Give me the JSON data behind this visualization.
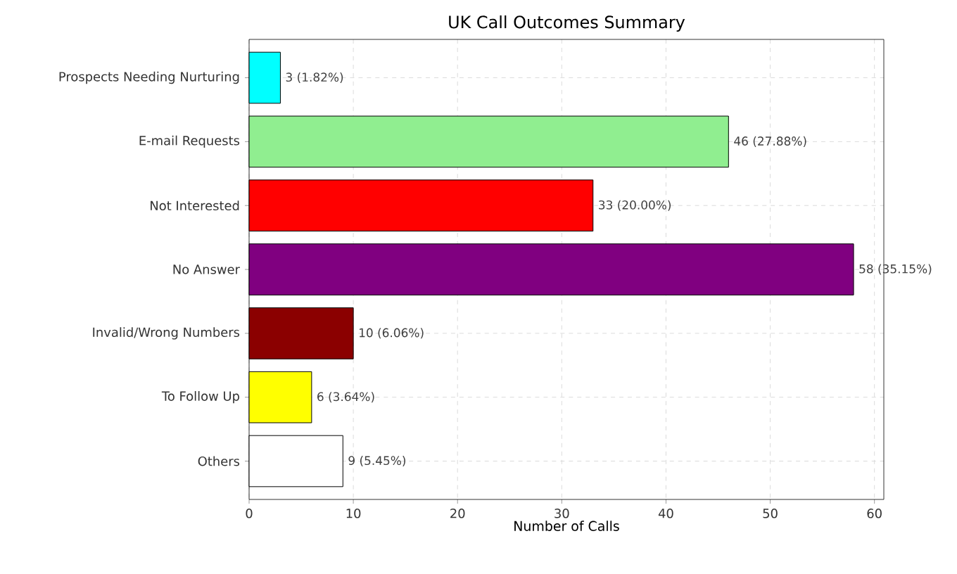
{
  "chart_data": {
    "type": "bar",
    "orientation": "horizontal",
    "title": "UK Call Outcomes Summary",
    "xlabel": "Number of Calls",
    "categories": [
      "Prospects Needing Nurturing",
      "E-mail Requests",
      "Not Interested",
      "No Answer",
      "Invalid/Wrong Numbers",
      "To Follow Up",
      "Others"
    ],
    "values": [
      3,
      46,
      33,
      58,
      10,
      6,
      9
    ],
    "colors": [
      "#00ffff",
      "#90ee90",
      "#ff0000",
      "#800080",
      "#8b0000",
      "#ffff00",
      "#ffffff"
    ],
    "value_labels": [
      "3 (1.82%)",
      "46 (27.88%)",
      "33 (20.00%)",
      "58 (35.15%)",
      "10 (6.06%)",
      "6 (3.64%)",
      "9 (5.45%)"
    ],
    "xlim": [
      0,
      60.9
    ],
    "xticks": [
      0,
      10,
      20,
      30,
      40,
      50,
      60
    ],
    "grid": true
  }
}
